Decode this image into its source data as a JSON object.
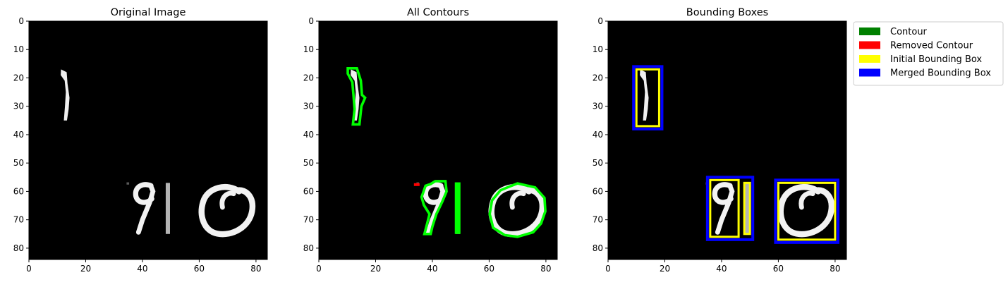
{
  "chart_data": [
    {
      "type": "image",
      "title": "Original Image",
      "xlim": [
        0,
        84
      ],
      "ylim": [
        84,
        0
      ],
      "xticks": [
        0,
        20,
        40,
        60,
        80
      ],
      "yticks": [
        0,
        10,
        20,
        30,
        40,
        50,
        60,
        70,
        80
      ],
      "background": "#000000"
    },
    {
      "type": "image",
      "title": "All Contours",
      "xlim": [
        0,
        84
      ],
      "ylim": [
        84,
        0
      ],
      "xticks": [
        0,
        20,
        40,
        60,
        80
      ],
      "yticks": [
        0,
        10,
        20,
        30,
        40,
        50,
        60,
        70,
        80
      ],
      "background": "#000000",
      "contour_color": "#00ff00",
      "removed_contour_color": "#ff0000",
      "removed_contours": [
        {
          "x": [
            33.5,
            35.5
          ],
          "y": [
            57.6,
            57.6
          ]
        }
      ]
    },
    {
      "type": "image",
      "title": "Bounding Boxes",
      "xlim": [
        0,
        84
      ],
      "ylim": [
        84,
        0
      ],
      "xticks": [
        0,
        20,
        40,
        60,
        80
      ],
      "yticks": [
        0,
        10,
        20,
        30,
        40,
        50,
        60,
        70,
        80
      ],
      "background": "#000000",
      "initial_boxes": [
        {
          "x0": 10,
          "y0": 17,
          "x1": 18,
          "y1": 37
        },
        {
          "x0": 36,
          "y0": 56,
          "x1": 46,
          "y1": 76
        },
        {
          "x0": 48,
          "y0": 57,
          "x1": 50,
          "y1": 75
        },
        {
          "x0": 60,
          "y0": 57,
          "x1": 80,
          "y1": 77
        }
      ],
      "merged_boxes": [
        {
          "x0": 9,
          "y0": 16,
          "x1": 19,
          "y1": 38
        },
        {
          "x0": 35,
          "y0": 55,
          "x1": 51,
          "y1": 77
        },
        {
          "x0": 59,
          "y0": 56,
          "x1": 81,
          "y1": 78
        }
      ],
      "initial_box_color": "#ffff00",
      "merged_box_color": "#0000ff"
    }
  ],
  "legend": {
    "placement": "outside-right-top",
    "entries": [
      {
        "label": "Contour",
        "color": "#008000"
      },
      {
        "label": "Removed Contour",
        "color": "#ff0000"
      },
      {
        "label": "Initial Bounding Box",
        "color": "#ffff00"
      },
      {
        "label": "Merged Bounding Box",
        "color": "#0000ff"
      }
    ]
  }
}
